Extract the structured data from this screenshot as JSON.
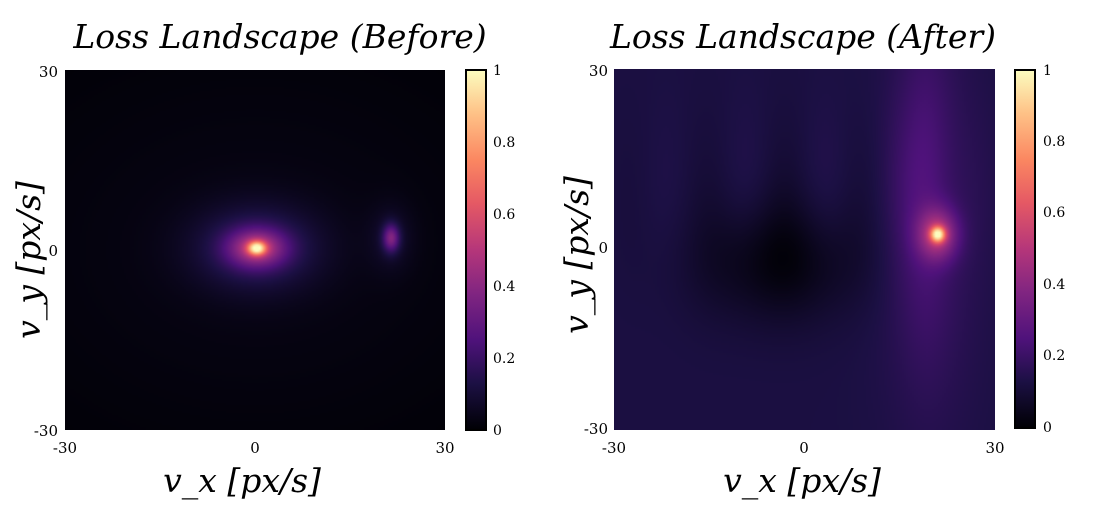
{
  "chart_data": [
    {
      "type": "heatmap",
      "title": "Loss Landscape (Before)",
      "xlabel": "v_x [px/s]",
      "ylabel": "v_y [px/s]",
      "xlim": [
        -30,
        30
      ],
      "ylim": [
        -30,
        30
      ],
      "x_ticks": [
        "-30",
        "0",
        "30"
      ],
      "y_ticks": [
        "30",
        "0",
        "-30"
      ],
      "colormap": "magma",
      "colorbar": {
        "range": [
          0,
          1
        ],
        "ticks": [
          "1",
          "0.8",
          "0.6",
          "0.4",
          "0.2",
          "0"
        ]
      },
      "background_level": 0.03,
      "peaks": [
        {
          "name": "main",
          "x": 0.3,
          "y": 0.3,
          "value": 1.0
        },
        {
          "name": "secondary",
          "x": 21.5,
          "y": 2.0,
          "value": 0.3
        }
      ]
    },
    {
      "type": "heatmap",
      "title": "Loss Landscape (After)",
      "xlabel": "v_x [px/s]",
      "ylabel": "v_y [px/s]",
      "xlim": [
        -30,
        30
      ],
      "ylim": [
        -30,
        30
      ],
      "x_ticks": [
        "-30",
        "0",
        "30"
      ],
      "y_ticks": [
        "30",
        "0",
        "-30"
      ],
      "colormap": "magma",
      "colorbar": {
        "range": [
          0,
          1
        ],
        "ticks": [
          "1",
          "0.8",
          "0.6",
          "0.4",
          "0.2",
          "0"
        ]
      },
      "background_level": 0.12,
      "min_region": {
        "x": -4,
        "y": -2,
        "value": 0.03
      },
      "peaks": [
        {
          "name": "main",
          "x": 21,
          "y": 2.5,
          "value": 1.0
        }
      ]
    }
  ]
}
